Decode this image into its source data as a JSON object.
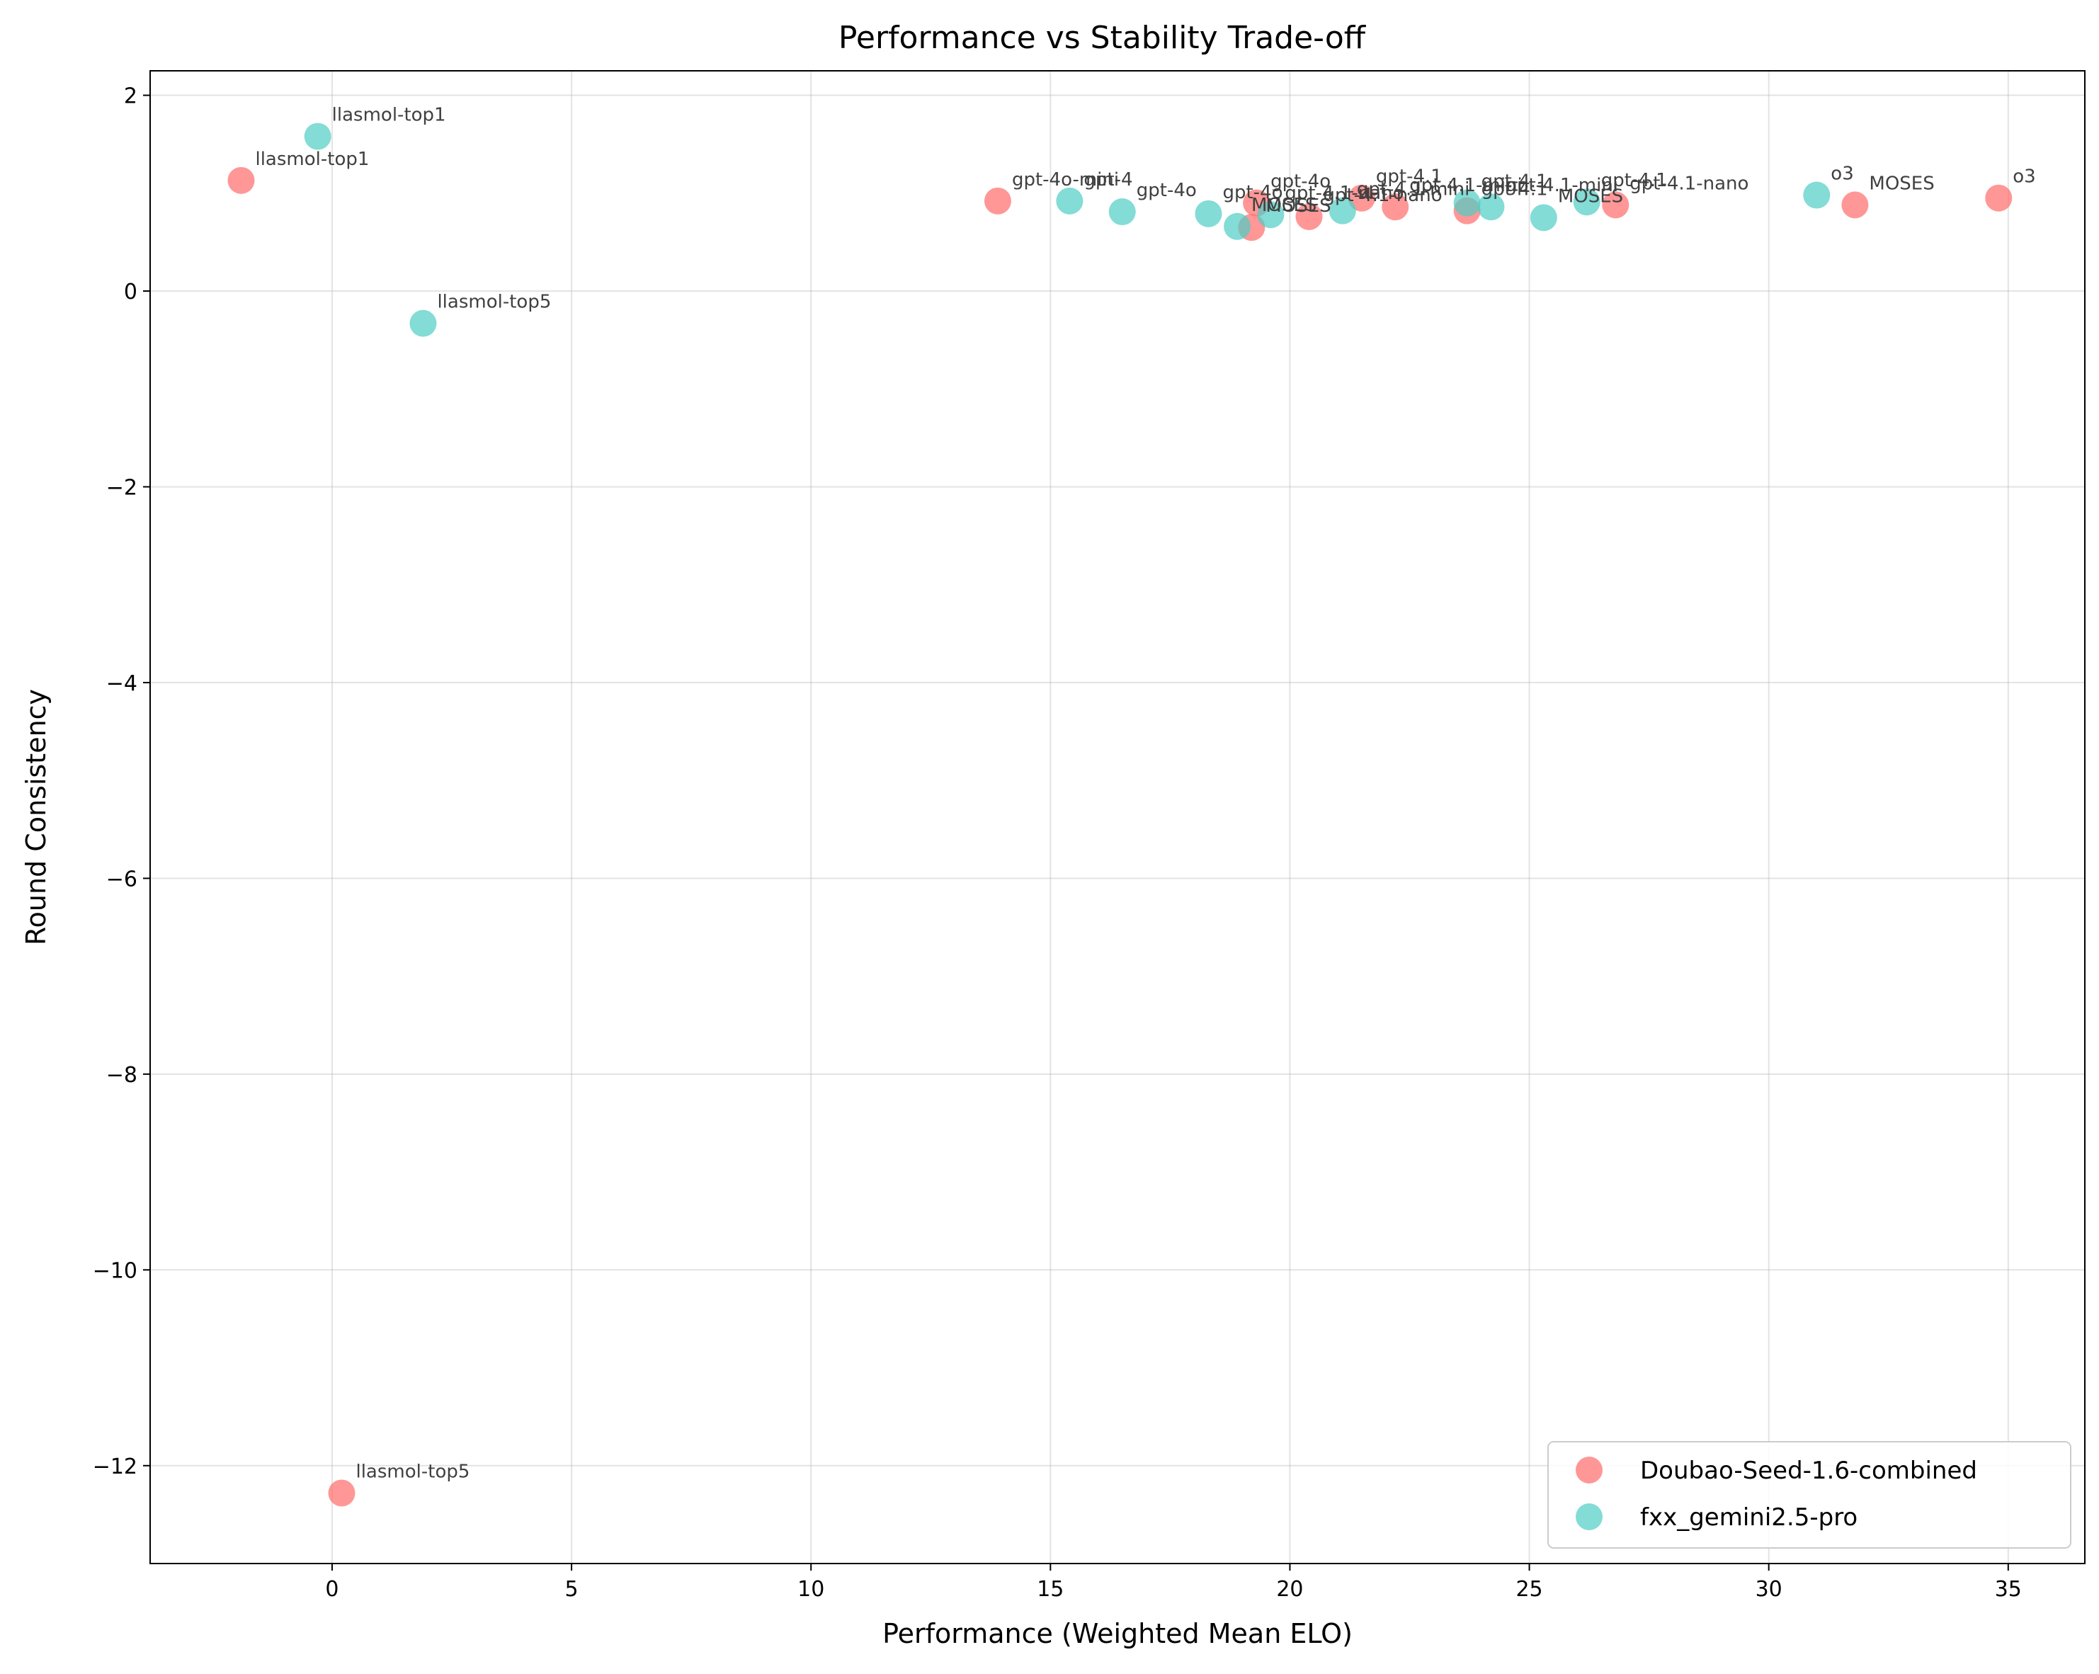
{
  "chart_data": {
    "type": "scatter",
    "title": "Performance vs Stability Trade-off",
    "xlabel": "Performance (Weighted Mean ELO)",
    "ylabel": "Round Consistency",
    "xlim": [
      -3.8,
      36.6
    ],
    "ylim": [
      -13.0,
      2.25
    ],
    "xticks": [
      0,
      5,
      10,
      15,
      20,
      25,
      30,
      35
    ],
    "yticks": [
      2,
      0,
      -2,
      -4,
      -6,
      -8,
      -10,
      -12
    ],
    "xtick_labels": [
      "0",
      "5",
      "10",
      "15",
      "20",
      "25",
      "30",
      "35"
    ],
    "ytick_labels": [
      "2",
      "0",
      "−2",
      "−4",
      "−6",
      "−8",
      "−10",
      "−12"
    ],
    "grid": true,
    "legend_position": "lower-right",
    "series": [
      {
        "name": "Doubao-Seed-1.6-combined",
        "color": "#ff6b6b",
        "points": [
          {
            "x": -1.9,
            "y": 1.13,
            "label": "llasmol-top1"
          },
          {
            "x": 0.2,
            "y": -12.28,
            "label": "llasmol-top5"
          },
          {
            "x": 13.9,
            "y": 0.92,
            "label": "gpt-4o-mini"
          },
          {
            "x": 19.2,
            "y": 0.65,
            "label": "MOSES"
          },
          {
            "x": 19.3,
            "y": 0.9,
            "label": "gpt-4o"
          },
          {
            "x": 20.4,
            "y": 0.76,
            "label": "gpt-4.1-nano"
          },
          {
            "x": 21.5,
            "y": 0.95,
            "label": "gpt-4.1"
          },
          {
            "x": 22.2,
            "y": 0.86,
            "label": "gpt-4.1-mini"
          },
          {
            "x": 23.7,
            "y": 0.82,
            "label": "gpt-4.1"
          },
          {
            "x": 26.8,
            "y": 0.88,
            "label": "gpt-4.1-nano"
          },
          {
            "x": 31.8,
            "y": 0.88,
            "label": "MOSES"
          },
          {
            "x": 34.8,
            "y": 0.95,
            "label": "o3"
          }
        ]
      },
      {
        "name": "fxx_gemini2.5-pro",
        "color": "#4ecdc4",
        "points": [
          {
            "x": -0.3,
            "y": 1.58,
            "label": "llasmol-top1"
          },
          {
            "x": 1.9,
            "y": -0.33,
            "label": "llasmol-top5"
          },
          {
            "x": 15.4,
            "y": 0.92,
            "label": "gpt-4"
          },
          {
            "x": 16.5,
            "y": 0.81,
            "label": "gpt-4o"
          },
          {
            "x": 18.3,
            "y": 0.79,
            "label": "gpt-4o"
          },
          {
            "x": 18.9,
            "y": 0.66,
            "label": "MOSES"
          },
          {
            "x": 19.6,
            "y": 0.78,
            "label": "gpt-4.1-nano"
          },
          {
            "x": 21.1,
            "y": 0.82,
            "label": "gpt-4.1-mini"
          },
          {
            "x": 23.7,
            "y": 0.9,
            "label": "gpt-4.1"
          },
          {
            "x": 24.2,
            "y": 0.86,
            "label": "gpt-4.1-mini"
          },
          {
            "x": 25.3,
            "y": 0.75,
            "label": "MOSES"
          },
          {
            "x": 26.2,
            "y": 0.91,
            "label": "gpt-4.1"
          },
          {
            "x": 31.0,
            "y": 0.98,
            "label": "o3"
          }
        ]
      }
    ]
  }
}
